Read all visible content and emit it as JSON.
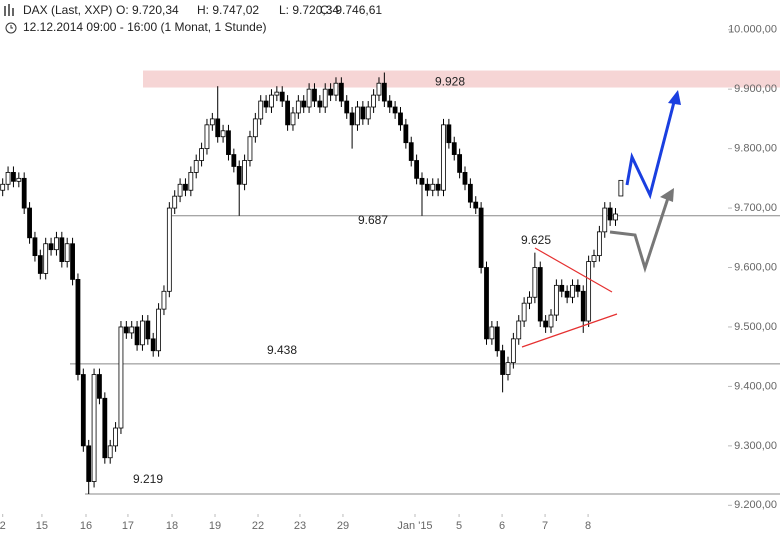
{
  "chart_data": {
    "type": "candlestick",
    "title": "DAX (Last, XXP)",
    "ohlc_labels": [
      "O: 9.720,34",
      "H: 9.747,02",
      "L: 9.720,34",
      "C: 9.746,61"
    ],
    "subtitle": "12.12.2014 09:00 - 16:00 (1 Monat, 1 Stunde)",
    "open": [
      9730,
      9740,
      9760,
      9745,
      9750,
      9700,
      9650,
      9620,
      9590,
      9640,
      9630,
      9650,
      9610,
      9640,
      9580,
      9420,
      9300,
      9240,
      9420,
      9380,
      9280,
      9300,
      9330,
      9500,
      9490,
      9500,
      9470,
      9510,
      9480,
      9460,
      9530,
      9560,
      9700,
      9720,
      9740,
      9730,
      9760,
      9780,
      9800,
      9840,
      9850,
      9820,
      9830,
      9790,
      9770,
      9740,
      9780,
      9820,
      9850,
      9880,
      9870,
      9890,
      9895,
      9880,
      9840,
      9860,
      9880,
      9870,
      9900,
      9880,
      9870,
      9900,
      9890,
      9910,
      9880,
      9860,
      9840,
      9870,
      9850,
      9870,
      9890,
      9910,
      9880,
      9870,
      9860,
      9840,
      9810,
      9780,
      9750,
      9740,
      9730,
      9740,
      9730,
      9840,
      9810,
      9790,
      9760,
      9740,
      9710,
      9700,
      9600,
      9480,
      9500,
      9460,
      9420,
      9440,
      9480,
      9510,
      9540,
      9550,
      9600,
      9510,
      9500,
      9520,
      9570,
      9560,
      9550,
      9570,
      9560,
      9510,
      9610,
      9620,
      9660,
      9700,
      9680,
      9720.34
    ],
    "high": [
      9750,
      9770,
      9770,
      9760,
      9760,
      9710,
      9660,
      9630,
      9650,
      9650,
      9660,
      9660,
      9650,
      9650,
      9590,
      9430,
      9310,
      9430,
      9430,
      9390,
      9310,
      9340,
      9510,
      9510,
      9510,
      9510,
      9520,
      9520,
      9490,
      9540,
      9570,
      9710,
      9730,
      9750,
      9750,
      9770,
      9790,
      9810,
      9850,
      9860,
      9905,
      9840,
      9840,
      9800,
      9780,
      9790,
      9830,
      9860,
      9890,
      9890,
      9900,
      9905,
      9905,
      9890,
      9870,
      9890,
      9890,
      9910,
      9910,
      9890,
      9910,
      9910,
      9920,
      9920,
      9890,
      9870,
      9880,
      9880,
      9880,
      9900,
      9920,
      9928,
      9890,
      9880,
      9870,
      9850,
      9820,
      9790,
      9760,
      9750,
      9750,
      9750,
      9850,
      9850,
      9820,
      9800,
      9770,
      9750,
      9720,
      9710,
      9610,
      9510,
      9510,
      9470,
      9450,
      9490,
      9520,
      9550,
      9560,
      9625,
      9610,
      9520,
      9530,
      9580,
      9580,
      9570,
      9580,
      9580,
      9570,
      9620,
      9630,
      9670,
      9710,
      9710,
      9700,
      9747.02
    ],
    "low": [
      9720,
      9730,
      9735,
      9735,
      9690,
      9640,
      9610,
      9580,
      9580,
      9620,
      9620,
      9600,
      9600,
      9570,
      9410,
      9290,
      9219,
      9230,
      9370,
      9270,
      9270,
      9290,
      9320,
      9480,
      9480,
      9460,
      9460,
      9470,
      9450,
      9450,
      9520,
      9550,
      9690,
      9710,
      9720,
      9720,
      9750,
      9770,
      9790,
      9830,
      9810,
      9810,
      9780,
      9760,
      9687,
      9730,
      9770,
      9810,
      9840,
      9860,
      9860,
      9880,
      9870,
      9830,
      9830,
      9850,
      9860,
      9860,
      9870,
      9860,
      9860,
      9880,
      9880,
      9870,
      9850,
      9800,
      9830,
      9840,
      9840,
      9860,
      9880,
      9870,
      9860,
      9850,
      9830,
      9800,
      9770,
      9740,
      9687,
      9720,
      9720,
      9720,
      9720,
      9800,
      9780,
      9750,
      9730,
      9700,
      9690,
      9590,
      9470,
      9470,
      9450,
      9390,
      9410,
      9430,
      9470,
      9500,
      9530,
      9540,
      9500,
      9490,
      9490,
      9510,
      9550,
      9540,
      9540,
      9550,
      9490,
      9500,
      9600,
      9610,
      9650,
      9670,
      9670,
      9720.34
    ],
    "close": [
      9740,
      9760,
      9745,
      9750,
      9700,
      9650,
      9620,
      9590,
      9640,
      9630,
      9650,
      9610,
      9640,
      9580,
      9420,
      9300,
      9240,
      9420,
      9380,
      9280,
      9300,
      9330,
      9500,
      9490,
      9500,
      9470,
      9510,
      9480,
      9460,
      9530,
      9560,
      9700,
      9720,
      9740,
      9730,
      9760,
      9780,
      9800,
      9840,
      9850,
      9820,
      9830,
      9790,
      9770,
      9740,
      9780,
      9820,
      9850,
      9880,
      9870,
      9890,
      9895,
      9880,
      9840,
      9860,
      9880,
      9870,
      9900,
      9880,
      9870,
      9900,
      9890,
      9910,
      9880,
      9860,
      9840,
      9870,
      9850,
      9870,
      9890,
      9910,
      9880,
      9870,
      9860,
      9840,
      9810,
      9780,
      9750,
      9740,
      9730,
      9740,
      9730,
      9840,
      9810,
      9790,
      9760,
      9740,
      9710,
      9700,
      9600,
      9480,
      9500,
      9460,
      9420,
      9440,
      9480,
      9510,
      9540,
      9550,
      9600,
      9510,
      9500,
      9520,
      9570,
      9560,
      9550,
      9570,
      9560,
      9510,
      9610,
      9620,
      9660,
      9700,
      9680,
      9690,
      9746.61
    ],
    "levels": [
      {
        "value": 9928,
        "label": "9.928"
      },
      {
        "value": 9687,
        "label": "9.687"
      },
      {
        "value": 9438,
        "label": "9.438"
      },
      {
        "value": 9219,
        "label": "9.219"
      }
    ],
    "annotation": {
      "value": 9625,
      "label": "9.625"
    },
    "xlim": [
      -0.5,
      144.6
    ],
    "xticks": [
      {
        "value": 0,
        "label": "2"
      },
      {
        "value": 7.3,
        "label": "15"
      },
      {
        "value": 15.5,
        "label": "16"
      },
      {
        "value": 23.3,
        "label": "17"
      },
      {
        "value": 31.5,
        "label": "18"
      },
      {
        "value": 39.5,
        "label": "19"
      },
      {
        "value": 47.5,
        "label": "22"
      },
      {
        "value": 55.3,
        "label": "23"
      },
      {
        "value": 63.3,
        "label": "29"
      },
      {
        "value": 76.7,
        "label": "Jan '15"
      },
      {
        "value": 84.9,
        "label": "5"
      },
      {
        "value": 92.9,
        "label": "6"
      },
      {
        "value": 100.9,
        "label": "7"
      },
      {
        "value": 108.9,
        "label": "8"
      }
    ],
    "ylim": [
      9145,
      10050
    ],
    "yticks": [
      {
        "value": 9200,
        "label": "9.200,00"
      },
      {
        "value": 9300,
        "label": "9.300,00"
      },
      {
        "value": 9400,
        "label": "9.400,00"
      },
      {
        "value": 9500,
        "label": "9.500,00"
      },
      {
        "value": 9600,
        "label": "9.600,00"
      },
      {
        "value": 9700,
        "label": "9.700,00"
      },
      {
        "value": 9800,
        "label": "9.800,00"
      },
      {
        "value": 9900,
        "label": "9.900,00"
      },
      {
        "value": 10000,
        "label": "10.000,00"
      }
    ],
    "up_color": "#ffffff",
    "down_color": "#000000",
    "level_color": "#888888",
    "zone_color": "#f6d5d5"
  }
}
